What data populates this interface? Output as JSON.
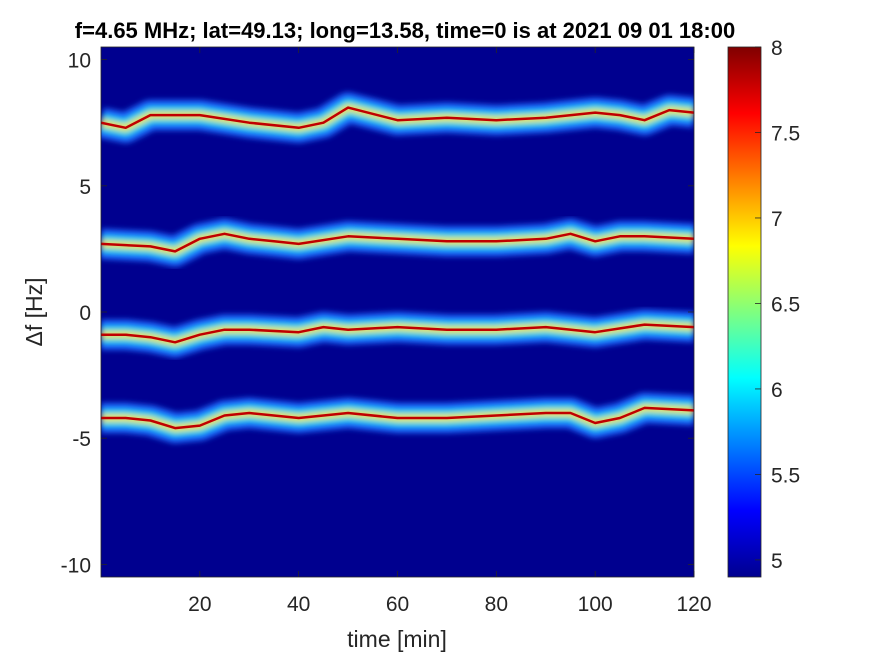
{
  "chart_data": {
    "type": "heatmap",
    "title": "f=4.65 MHz;  lat=49.13; long=13.58, time=0 is at 2021 09 01 18:00",
    "xlabel": "time [min]",
    "ylabel": "Δf [Hz]",
    "xlim": [
      0,
      120
    ],
    "ylim": [
      -10.5,
      10.5
    ],
    "x_ticks": [
      20,
      40,
      60,
      80,
      100,
      120
    ],
    "x_tick_labels": [
      "20",
      "40",
      "60",
      "80",
      "100",
      "120"
    ],
    "y_ticks": [
      10,
      5,
      0,
      -5,
      -10
    ],
    "y_tick_labels": [
      "10",
      "5",
      "0",
      "-5",
      "-10"
    ],
    "colorbar": {
      "range": [
        4.9,
        8
      ],
      "ticks": [
        8,
        7.5,
        7,
        6.5,
        6,
        5.5,
        5
      ],
      "tick_labels": [
        "8",
        "7.5",
        "7",
        "6.5",
        "6",
        "5.5",
        "5"
      ],
      "colormap": "jet"
    },
    "background_color": "#00008f",
    "trace_color": "#c00000",
    "series": [
      {
        "time": [
          0,
          5,
          10,
          20,
          30,
          40,
          45,
          50,
          60,
          70,
          80,
          90,
          100,
          105,
          110,
          115,
          120
        ],
        "df": [
          7.5,
          7.3,
          7.8,
          7.8,
          7.5,
          7.3,
          7.5,
          8.1,
          7.6,
          7.7,
          7.6,
          7.7,
          7.9,
          7.8,
          7.6,
          8.0,
          7.9
        ]
      },
      {
        "time": [
          0,
          10,
          15,
          20,
          25,
          30,
          35,
          40,
          50,
          60,
          70,
          80,
          90,
          95,
          100,
          105,
          110,
          120
        ],
        "df": [
          2.7,
          2.6,
          2.4,
          2.9,
          3.1,
          2.9,
          2.8,
          2.7,
          3.0,
          2.9,
          2.8,
          2.8,
          2.9,
          3.1,
          2.8,
          3.0,
          3.0,
          2.9
        ]
      },
      {
        "time": [
          0,
          5,
          10,
          15,
          20,
          25,
          30,
          40,
          45,
          50,
          60,
          70,
          80,
          90,
          100,
          110,
          120
        ],
        "df": [
          -0.9,
          -0.9,
          -1.0,
          -1.2,
          -0.9,
          -0.7,
          -0.7,
          -0.8,
          -0.6,
          -0.7,
          -0.6,
          -0.7,
          -0.7,
          -0.6,
          -0.8,
          -0.5,
          -0.6
        ]
      },
      {
        "time": [
          0,
          5,
          10,
          15,
          20,
          25,
          30,
          40,
          50,
          60,
          70,
          80,
          90,
          95,
          100,
          105,
          110,
          120
        ],
        "df": [
          -4.2,
          -4.2,
          -4.3,
          -4.6,
          -4.5,
          -4.1,
          -4.0,
          -4.2,
          -4.0,
          -4.2,
          -4.2,
          -4.1,
          -4.0,
          -4.0,
          -4.4,
          -4.2,
          -3.8,
          -3.9
        ]
      }
    ]
  }
}
